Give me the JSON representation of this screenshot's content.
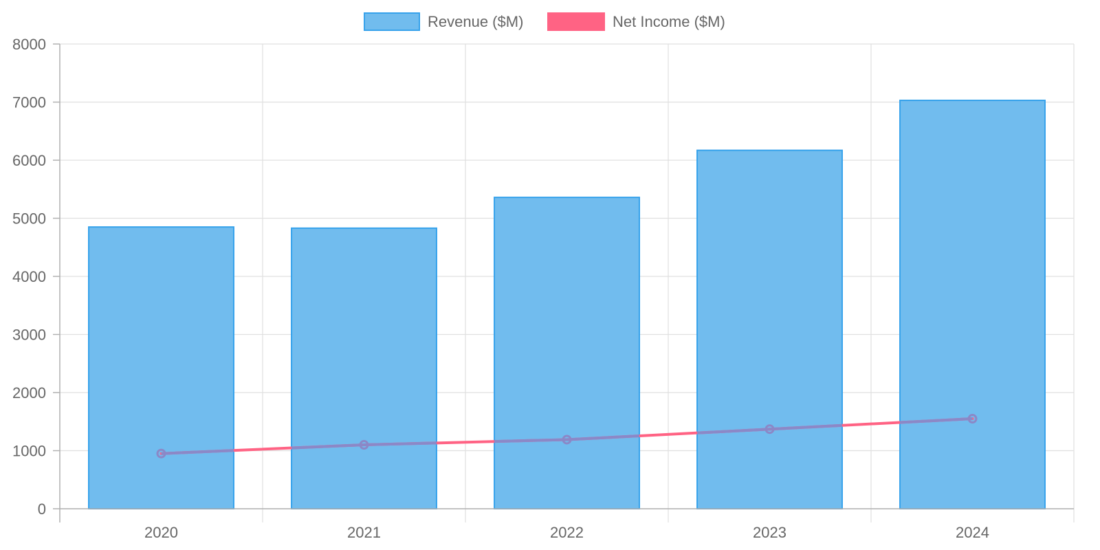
{
  "chart_data": {
    "type": "bar",
    "categories": [
      "2020",
      "2021",
      "2022",
      "2023",
      "2024"
    ],
    "series": [
      {
        "name": "Revenue ($M)",
        "type": "bar",
        "values": [
          4850,
          4830,
          5360,
          6170,
          7030
        ],
        "fill": "#71bcee",
        "stroke": "#36a2eb"
      },
      {
        "name": "Net Income ($M)",
        "type": "line",
        "values": [
          950,
          1100,
          1190,
          1370,
          1550
        ],
        "color": "#ff6384",
        "point_color": "#8b88c7"
      }
    ],
    "ylim": [
      0,
      8000
    ],
    "y_ticks": [
      "0",
      "1000",
      "2000",
      "3000",
      "4000",
      "5000",
      "6000",
      "7000",
      "8000"
    ],
    "grid": true,
    "legend": "top-center",
    "xlabel": "",
    "ylabel": ""
  }
}
